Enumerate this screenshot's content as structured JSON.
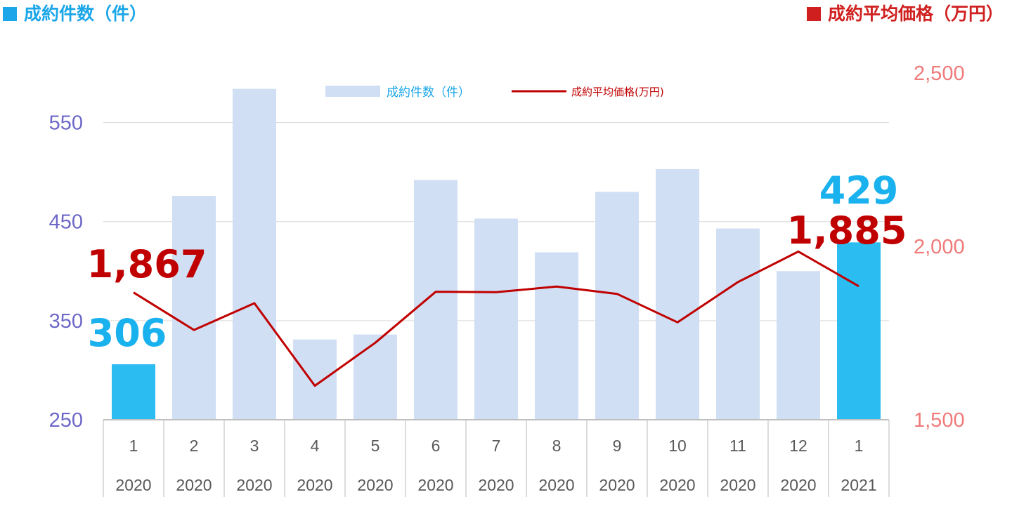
{
  "header": {
    "left_title": "成約件数（件）",
    "right_title": "成約平均価格（万円）",
    "left_color": "#1aa6e8",
    "right_color": "#d01f1f"
  },
  "chart_data": {
    "type": "bar",
    "categories": [
      "1",
      "2",
      "3",
      "4",
      "5",
      "6",
      "7",
      "8",
      "9",
      "10",
      "11",
      "12",
      "1"
    ],
    "years": [
      "2020",
      "2020",
      "2020",
      "2020",
      "2020",
      "2020",
      "2020",
      "2020",
      "2020",
      "2020",
      "2020",
      "2020",
      "2021"
    ],
    "series": [
      {
        "name": "成約件数（件）",
        "type": "bar",
        "axis": "left",
        "values": [
          306,
          476,
          584,
          331,
          336,
          492,
          453,
          419,
          480,
          503,
          443,
          400,
          429
        ],
        "color": "#d0dff3",
        "highlight_color": "#2bbdf1",
        "highlight_indices": [
          0,
          12
        ]
      },
      {
        "name": "成約平均価格(万円)",
        "type": "line",
        "axis": "right",
        "values": [
          1867,
          1759,
          1836,
          1598,
          1722,
          1869,
          1868,
          1884,
          1863,
          1781,
          1897,
          1985,
          1885
        ],
        "color": "#c00000"
      }
    ],
    "y_left": {
      "min": 250,
      "max": 600,
      "ticks": [
        "250",
        "350",
        "450",
        "550"
      ]
    },
    "y_right": {
      "min": 1500,
      "max": 2500,
      "ticks": [
        "1,500",
        "2,000",
        "2,500"
      ]
    },
    "annotations": [
      {
        "text": "306",
        "series": 0,
        "index": 0
      },
      {
        "text": "1,867",
        "series": 1,
        "index": 0
      },
      {
        "text": "429",
        "series": 0,
        "index": 12
      },
      {
        "text": "1,885",
        "series": 1,
        "index": 12
      }
    ],
    "grid": true,
    "legend_position": "top-center"
  }
}
